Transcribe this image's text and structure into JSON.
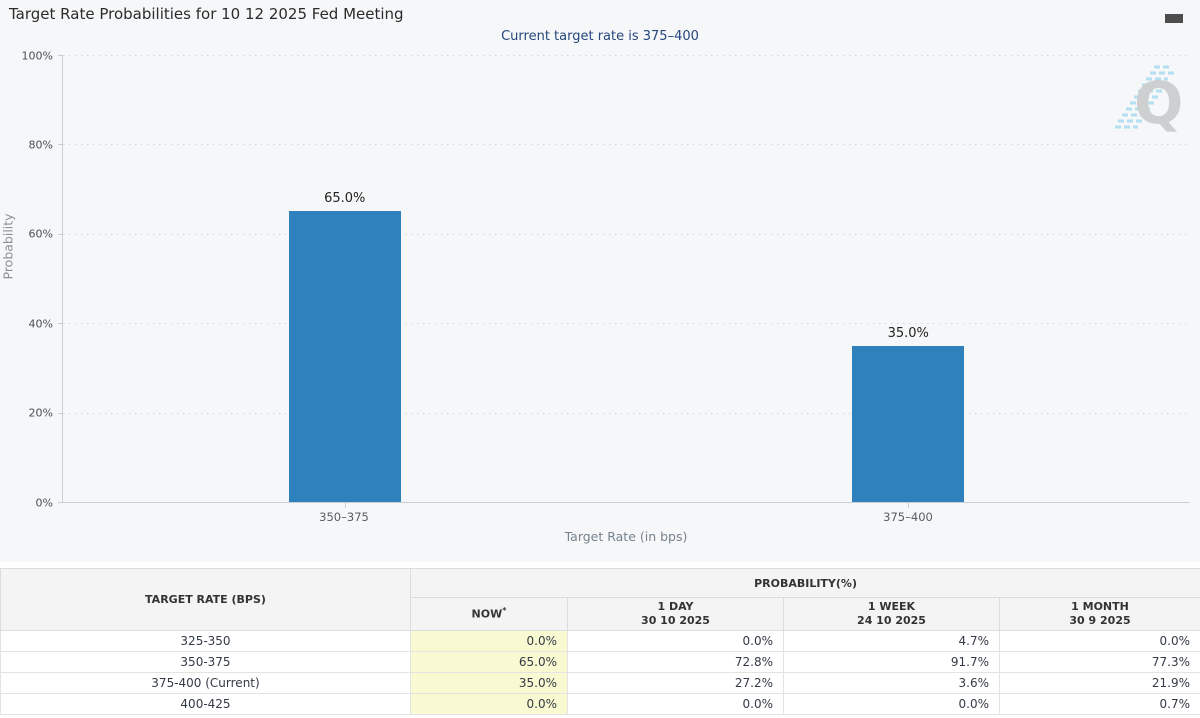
{
  "header": {
    "title": "Target Rate Probabilities for 10 12 2025 Fed Meeting",
    "subtitle": "Current target rate is 375–400"
  },
  "chart_data": {
    "type": "bar",
    "title": "Target Rate Probabilities for 10 12 2025 Fed Meeting",
    "subtitle": "Current target rate is 375–400",
    "categories": [
      "350–375",
      "375–400"
    ],
    "values": [
      65.0,
      35.0
    ],
    "value_labels": [
      "65.0%",
      "35.0%"
    ],
    "xlabel": "Target Rate (in bps)",
    "ylabel": "Probability",
    "ylim": [
      0,
      100
    ],
    "ytick_labels": [
      "100%",
      "80%",
      "60%",
      "40%",
      "20%",
      "0%"
    ],
    "grid": "horizontal-dotted",
    "legend": "none",
    "bar_color": "#2E81BC",
    "watermark_letter": "Q"
  },
  "table": {
    "header": {
      "target_rate": "TARGET RATE (BPS)",
      "probability": "PROBABILITY(%)",
      "now": "NOW",
      "now_asterisk": "*",
      "one_day_label": "1 DAY",
      "one_day_date": "30 10 2025",
      "one_week_label": "1 WEEK",
      "one_week_date": "24 10 2025",
      "one_month_label": "1 MONTH",
      "one_month_date": "30 9 2025"
    },
    "rows": [
      {
        "label": "325-350",
        "now": "0.0%",
        "one_day": "0.0%",
        "one_week": "4.7%",
        "one_month": "0.0%"
      },
      {
        "label": "350-375",
        "now": "65.0%",
        "one_day": "72.8%",
        "one_week": "91.7%",
        "one_month": "77.3%"
      },
      {
        "label": "375-400 (Current)",
        "now": "35.0%",
        "one_day": "27.2%",
        "one_week": "3.6%",
        "one_month": "21.9%"
      },
      {
        "label": "400-425",
        "now": "0.0%",
        "one_day": "0.0%",
        "one_week": "0.0%",
        "one_month": "0.7%"
      }
    ],
    "now_highlight_color": "#FAFAD2"
  }
}
